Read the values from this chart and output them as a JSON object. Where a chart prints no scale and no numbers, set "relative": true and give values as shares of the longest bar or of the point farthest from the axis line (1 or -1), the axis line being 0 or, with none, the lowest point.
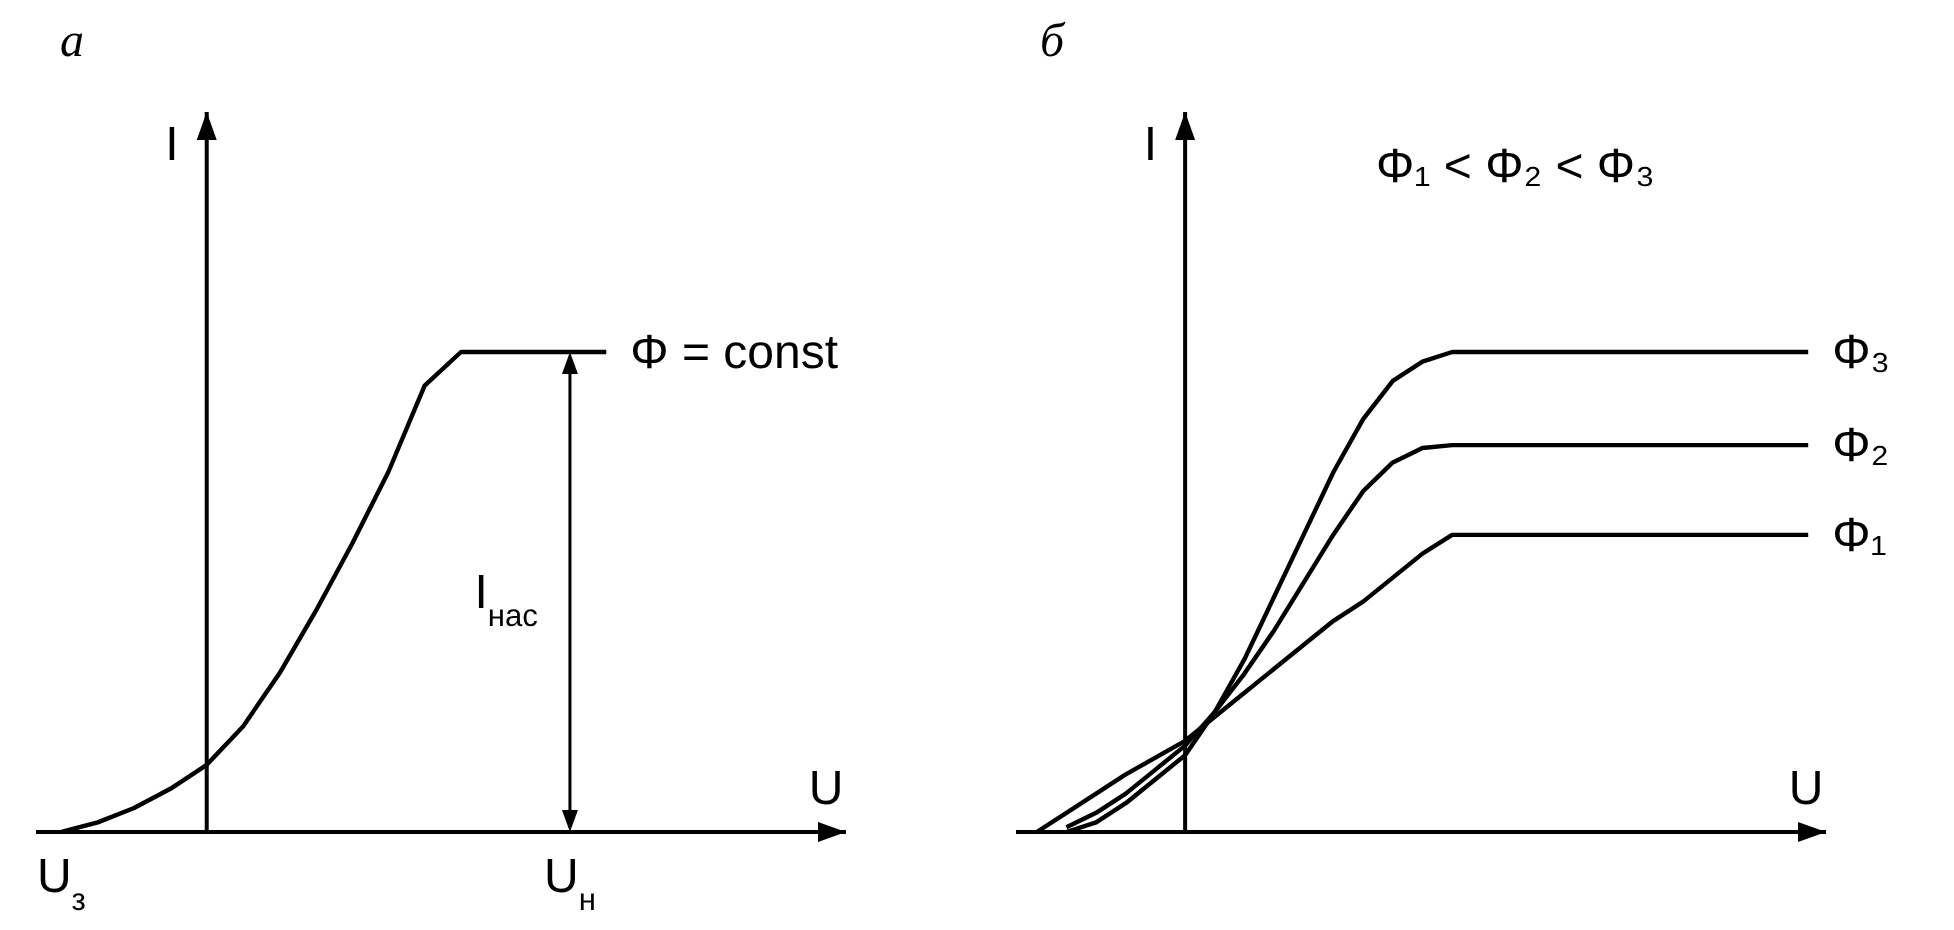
{
  "chart_data": [
    {
      "type": "line",
      "title": "а",
      "xlabel": "U",
      "ylabel": "I",
      "relative": true,
      "categories": [
        "U$_{з}$",
        null,
        null,
        null,
        null,
        null,
        null,
        null,
        null,
        null,
        null,
        null,
        null,
        null,
        "U$_{н}$",
        null,
        null,
        null,
        null,
        null,
        null,
        null
      ],
      "series": [
        {
          "name": "Φ = const",
          "color": "#000000",
          "values": [
            0,
            0.02,
            0.05,
            0.09,
            0.14,
            0.22,
            0.33,
            0.46,
            0.6,
            0.75,
            0.93,
            1,
            1,
            1,
            1,
            1,
            null,
            null,
            null,
            null,
            null,
            null
          ]
        }
      ],
      "ref_lines": [
        {
          "axis": "x",
          "value": "U$_{н}$",
          "label": "I$_{нас}$"
        }
      ]
    },
    {
      "type": "line",
      "title": "б",
      "xlabel": "U",
      "ylabel": "I",
      "relative": true,
      "categories": [
        null,
        null,
        null,
        null,
        null,
        null,
        null,
        null,
        null,
        null,
        null,
        null,
        null,
        null,
        null,
        null,
        null,
        null,
        null,
        null,
        null,
        null,
        null,
        null,
        null,
        null,
        null
      ],
      "series": [
        {
          "name": "Φ₃",
          "color": "#000000",
          "values": [
            null,
            0,
            0.02,
            0.06,
            0.11,
            0.16,
            0.25,
            0.36,
            0.49,
            0.62,
            0.75,
            0.86,
            0.94,
            0.98,
            1,
            1,
            1,
            1,
            1,
            1,
            1,
            1,
            1,
            1,
            1,
            1,
            1
          ]
        },
        {
          "name": "Φ₂",
          "color": "#000000",
          "values": [
            null,
            0.01,
            0.04,
            0.08,
            0.13,
            0.18,
            0.25,
            0.33,
            0.42,
            0.52,
            0.62,
            0.71,
            0.77,
            0.8,
            0.806,
            0.806,
            0.806,
            0.806,
            0.806,
            0.806,
            0.806,
            0.806,
            0.806,
            0.806,
            0.806,
            0.806,
            0.806
          ]
        },
        {
          "name": "Φ₁",
          "color": "#000000",
          "values": [
            0,
            0.04,
            0.08,
            0.12,
            0.155,
            0.19,
            0.24,
            0.29,
            0.34,
            0.39,
            0.44,
            0.48,
            0.53,
            0.58,
            0.619,
            0.619,
            0.619,
            0.619,
            0.619,
            0.619,
            0.619,
            0.619,
            0.619,
            0.619,
            0.619,
            0.619,
            0.619
          ]
        }
      ],
      "annotations": [
        "Φ₁ < Φ₂ < Φ₃"
      ]
    }
  ]
}
